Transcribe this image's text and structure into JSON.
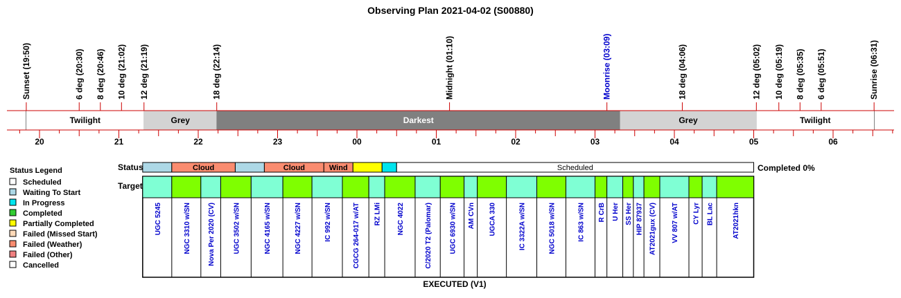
{
  "title": "Observing Plan 2021-04-02 (S00880)",
  "chart_data": {
    "type": "timeline",
    "time_axis": {
      "start": "19:30",
      "end": "06:45",
      "hour_labels": [
        "20",
        "21",
        "22",
        "23",
        "00",
        "01",
        "02",
        "03",
        "04",
        "05",
        "06"
      ]
    },
    "events": [
      {
        "label": "Sunset (19:50)",
        "time": "19:50",
        "color": "#000000"
      },
      {
        "label": "6 deg (20:30)",
        "time": "20:30",
        "color": "#000000"
      },
      {
        "label": "8 deg (20:46)",
        "time": "20:46",
        "color": "#000000"
      },
      {
        "label": "10 deg (21:02)",
        "time": "21:02",
        "color": "#000000"
      },
      {
        "label": "12 deg (21:19)",
        "time": "21:19",
        "color": "#000000"
      },
      {
        "label": "18 deg (22:14)",
        "time": "22:14",
        "color": "#000000"
      },
      {
        "label": "Midnight (01:10)",
        "time": "01:10",
        "color": "#000000"
      },
      {
        "label": "Moonrise (03:09)",
        "time": "03:09",
        "color": "#0000cc"
      },
      {
        "label": "18 deg (04:06)",
        "time": "04:06",
        "color": "#000000"
      },
      {
        "label": "12 deg (05:02)",
        "time": "05:02",
        "color": "#000000"
      },
      {
        "label": "10 deg (05:19)",
        "time": "05:19",
        "color": "#000000"
      },
      {
        "label": "8 deg (05:35)",
        "time": "05:35",
        "color": "#000000"
      },
      {
        "label": "6 deg (05:51)",
        "time": "05:51",
        "color": "#000000"
      },
      {
        "label": "Sunrise (06:31)",
        "time": "06:31",
        "color": "#000000"
      }
    ],
    "phases": [
      {
        "label": "Twilight",
        "start": "19:50",
        "end": "21:19",
        "color": "#ffffff",
        "text_color": "#000000"
      },
      {
        "label": "Grey",
        "start": "21:19",
        "end": "22:14",
        "color": "#d3d3d3",
        "text_color": "#000000"
      },
      {
        "label": "Darkest",
        "start": "22:14",
        "end": "03:19",
        "color": "#808080",
        "text_color": "#ffffff"
      },
      {
        "label": "Grey",
        "start": "03:19",
        "end": "05:02",
        "color": "#d3d3d3",
        "text_color": "#000000"
      },
      {
        "label": "Twilight",
        "start": "05:02",
        "end": "06:31",
        "color": "#ffffff",
        "text_color": "#000000"
      }
    ],
    "status_row_label": "Status",
    "targets_row_label": "Targets",
    "status_segments": [
      {
        "label": "",
        "start": "21:18",
        "end": "21:40",
        "color": "#add8e6"
      },
      {
        "label": "Cloud",
        "start": "21:40",
        "end": "22:28",
        "color": "#fa8c70"
      },
      {
        "label": "",
        "start": "22:28",
        "end": "22:50",
        "color": "#add8e6"
      },
      {
        "label": "Cloud",
        "start": "22:50",
        "end": "23:35",
        "color": "#fa8c70"
      },
      {
        "label": "Wind",
        "start": "23:35",
        "end": "23:57",
        "color": "#fa8c70"
      },
      {
        "label": "",
        "start": "23:57",
        "end": "00:19",
        "color": "#ffff00"
      },
      {
        "label": "",
        "start": "00:19",
        "end": "00:30",
        "color": "#00e5ee"
      },
      {
        "label": "Scheduled",
        "start": "00:30",
        "end": "05:00",
        "color": "#ffffff"
      }
    ],
    "completed_text": "Completed 0%",
    "targets": [
      {
        "name": "UGC 5245",
        "start": "21:18",
        "end": "21:40",
        "color": "#7fffd4"
      },
      {
        "name": "NGC 3310 w/SN",
        "start": "21:40",
        "end": "22:02",
        "color": "#7fff00"
      },
      {
        "name": "Nova Per 2020 (CV)",
        "start": "22:02",
        "end": "22:17",
        "color": "#7fffd4"
      },
      {
        "name": "UGC 3502 w/SN",
        "start": "22:17",
        "end": "22:40",
        "color": "#7fff00"
      },
      {
        "name": "NGC 4165 w/SN",
        "start": "22:40",
        "end": "23:04",
        "color": "#7fffd4"
      },
      {
        "name": "NGC 4227 w/SN",
        "start": "23:04",
        "end": "23:26",
        "color": "#7fff00"
      },
      {
        "name": "IC 992 w/SN",
        "start": "23:26",
        "end": "23:49",
        "color": "#7fffd4"
      },
      {
        "name": "CGCG 264-017 w/AT",
        "start": "23:49",
        "end": "00:09",
        "color": "#7fff00"
      },
      {
        "name": "RZ LMi",
        "start": "00:09",
        "end": "00:21",
        "color": "#7fffd4"
      },
      {
        "name": "NGC 4022",
        "start": "00:21",
        "end": "00:44",
        "color": "#7fff00"
      },
      {
        "name": "C/2020 T2 (Palomar)",
        "start": "00:44",
        "end": "01:03",
        "color": "#7fffd4"
      },
      {
        "name": "UGC 6930 w/SN",
        "start": "01:03",
        "end": "01:21",
        "color": "#7fff00"
      },
      {
        "name": "AM CVn",
        "start": "01:21",
        "end": "01:31",
        "color": "#7fffd4"
      },
      {
        "name": "UGCA 330",
        "start": "01:31",
        "end": "01:53",
        "color": "#7fff00"
      },
      {
        "name": "IC 3322A w/SN",
        "start": "01:53",
        "end": "02:16",
        "color": "#7fffd4"
      },
      {
        "name": "NGC 5018 w/SN",
        "start": "02:16",
        "end": "02:38",
        "color": "#7fff00"
      },
      {
        "name": "IC 863 w/SN",
        "start": "02:38",
        "end": "03:00",
        "color": "#7fffd4"
      },
      {
        "name": "R CrB",
        "start": "03:00",
        "end": "03:09",
        "color": "#7fff00"
      },
      {
        "name": "U Her",
        "start": "03:09",
        "end": "03:21",
        "color": "#7fffd4"
      },
      {
        "name": "SS Her",
        "start": "03:21",
        "end": "03:29",
        "color": "#7fff00"
      },
      {
        "name": "HIP 87937",
        "start": "03:29",
        "end": "03:37",
        "color": "#7fffd4"
      },
      {
        "name": "AT2021gux (CV)",
        "start": "03:37",
        "end": "03:49",
        "color": "#7fff00"
      },
      {
        "name": "VV 807 w/AT",
        "start": "03:49",
        "end": "04:11",
        "color": "#7fffd4"
      },
      {
        "name": "CY Lyr",
        "start": "04:11",
        "end": "04:21",
        "color": "#7fff00"
      },
      {
        "name": "BL Lac",
        "start": "04:21",
        "end": "04:32",
        "color": "#7fffd4"
      },
      {
        "name": "AT2021hkn",
        "start": "04:32",
        "end": "05:00",
        "color": "#7fff00"
      }
    ],
    "footer_label": "EXECUTED (V1)",
    "legend": {
      "title": "Status Legend",
      "placement": "left",
      "items": [
        {
          "label": "Scheduled",
          "color": "#ffffff"
        },
        {
          "label": "Waiting To Start",
          "color": "#add8e6"
        },
        {
          "label": "In Progress",
          "color": "#00e5ee"
        },
        {
          "label": "Completed",
          "color": "#32cd32"
        },
        {
          "label": "Partially Completed",
          "color": "#ffff00"
        },
        {
          "label": "Failed (Missed Start)",
          "color": "#ffdab9"
        },
        {
          "label": "Failed (Weather)",
          "color": "#fa8c70"
        },
        {
          "label": "Failed (Other)",
          "color": "#f08080"
        },
        {
          "label": "Cancelled",
          "color": "#ffffff"
        }
      ]
    },
    "colors": {
      "axis_line": "#cc0000",
      "target_text": "#0000cc"
    }
  }
}
